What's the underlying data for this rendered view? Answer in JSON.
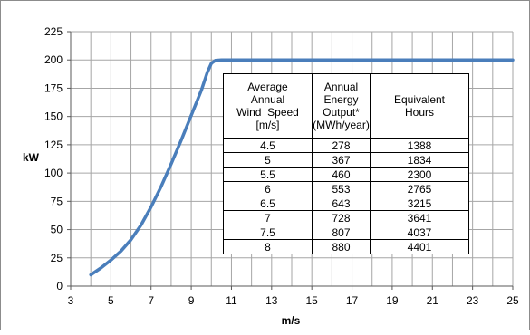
{
  "chart_data": {
    "type": "line",
    "xlabel": "m/s",
    "ylabel": "kW",
    "xlim": [
      3,
      25
    ],
    "ylim": [
      0,
      225
    ],
    "x_ticks": [
      3,
      5,
      7,
      9,
      11,
      13,
      15,
      17,
      19,
      21,
      23,
      25
    ],
    "y_ticks": [
      0,
      25,
      50,
      75,
      100,
      125,
      150,
      175,
      200,
      225
    ],
    "grid": true,
    "series": [
      {
        "color": "#4a7ebb",
        "x": [
          4,
          4.5,
          5,
          5.5,
          6,
          6.5,
          7,
          7.5,
          8,
          8.5,
          9,
          9.5,
          9.8,
          10,
          10.2,
          10.5,
          11,
          12,
          14,
          16,
          18,
          20,
          22,
          24,
          25
        ],
        "y": [
          10,
          16,
          23,
          31,
          41,
          54,
          70,
          88,
          108,
          129,
          151,
          173,
          189,
          197,
          199.5,
          200,
          200,
          200,
          200,
          200,
          200,
          200,
          200,
          200,
          200
        ]
      }
    ],
    "table": {
      "headers": [
        [
          "Average",
          "Annual",
          "Wind  Speed",
          "[m/s]"
        ],
        [
          "Annual",
          "Energy",
          "Output*",
          "(MWh/year)"
        ],
        [
          "Equivalent",
          "Hours"
        ]
      ],
      "rows": [
        [
          "4.5",
          "278",
          "1388"
        ],
        [
          "5",
          "367",
          "1834"
        ],
        [
          "5.5",
          "460",
          "2300"
        ],
        [
          "6",
          "553",
          "2765"
        ],
        [
          "6.5",
          "643",
          "3215"
        ],
        [
          "7",
          "728",
          "3641"
        ],
        [
          "7.5",
          "807",
          "4037"
        ],
        [
          "8",
          "880",
          "4401"
        ]
      ]
    }
  }
}
